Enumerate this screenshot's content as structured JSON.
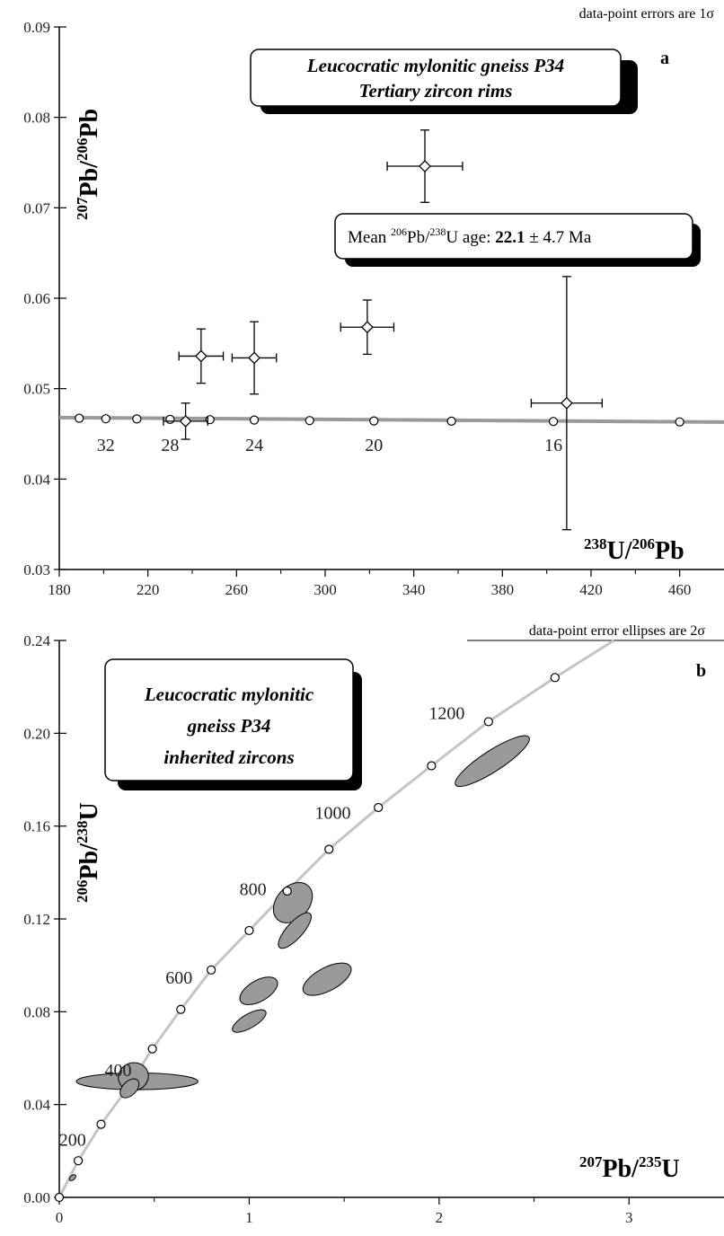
{
  "chart_data": [
    {
      "panel": "a",
      "type": "scatter",
      "note": "data-point errors  are 1σ",
      "title_box": [
        "Leucocratic mylonitic gneiss P34",
        "Tertiary zircon rims"
      ],
      "mean_box": {
        "prefix": "Mean ",
        "sup1": "206",
        "mid1": "Pb/",
        "sup2": "238",
        "mid2": "U age: ",
        "value": "22.1",
        "suffix": " ± 4.7 Ma"
      },
      "ylabel": {
        "sup1": "207",
        "t1": "Pb/",
        "sup2": "206",
        "t2": "Pb"
      },
      "xlabel": {
        "sup1": "238",
        "t1": "U/",
        "sup2": "206",
        "t2": "Pb"
      },
      "xlim": [
        180,
        480
      ],
      "ylim": [
        0.03,
        0.09
      ],
      "xticks": [
        180,
        220,
        260,
        300,
        340,
        380,
        420,
        460
      ],
      "yticks": [
        "0.03",
        "0.04",
        "0.05",
        "0.06",
        "0.07",
        "0.08",
        "0.09"
      ],
      "yticks_values": [
        0.03,
        0.04,
        0.05,
        0.06,
        0.07,
        0.08,
        0.09
      ],
      "concordia_line": [
        [
          180,
          0.0468
        ],
        [
          480,
          0.0463
        ]
      ],
      "concordia_markers": [
        [
          189,
          0.04673
        ],
        [
          201,
          0.04667
        ],
        [
          215,
          0.04665
        ],
        [
          230,
          0.0466
        ],
        [
          248,
          0.04657
        ],
        [
          268,
          0.04653
        ],
        [
          293,
          0.04647
        ],
        [
          322,
          0.04643
        ],
        [
          357,
          0.0464
        ],
        [
          403,
          0.04637
        ],
        [
          460,
          0.04632
        ]
      ],
      "age_labels": [
        {
          "text": "32",
          "x": 201,
          "y": 0.0437
        },
        {
          "text": "28",
          "x": 230,
          "y": 0.0437
        },
        {
          "text": "24",
          "x": 268,
          "y": 0.0437
        },
        {
          "text": "20",
          "x": 322,
          "y": 0.0437
        },
        {
          "text": "16",
          "x": 403,
          "y": 0.0437
        }
      ],
      "points": [
        {
          "x": 244,
          "y": 0.0536,
          "xerr": 10,
          "yerr": 0.003
        },
        {
          "x": 268,
          "y": 0.0534,
          "xerr": 10,
          "yerr": 0.004
        },
        {
          "x": 237,
          "y": 0.0464,
          "xerr": 10,
          "yerr": 0.002
        },
        {
          "x": 319,
          "y": 0.0568,
          "xerr": 12,
          "yerr": 0.003
        },
        {
          "x": 345,
          "y": 0.0746,
          "xerr": 17,
          "yerr": 0.004
        },
        {
          "x": 409,
          "y": 0.0484,
          "xerr": 16,
          "yerr": 0.014
        }
      ]
    },
    {
      "panel": "b",
      "type": "scatter",
      "note": "data-point error ellipses are 2σ",
      "title_box": [
        "Leucocratic mylonitic",
        "gneiss P34",
        "inherited  zircons"
      ],
      "ylabel": {
        "sup1": "206",
        "t1": "Pb/",
        "sup2": "238",
        "t2": "U"
      },
      "xlabel": {
        "sup1": "207",
        "t1": "Pb/",
        "sup2": "235",
        "t2": "U"
      },
      "xlim": [
        0,
        3.5
      ],
      "ylim": [
        0,
        0.24
      ],
      "xticks": [
        0,
        1,
        2,
        3
      ],
      "yticks": [
        "0.00",
        "0.04",
        "0.08",
        "0.12",
        "0.16",
        "0.20",
        "0.24"
      ],
      "yticks_values": [
        0.0,
        0.04,
        0.08,
        0.12,
        0.16,
        0.2,
        0.24
      ],
      "concordia_curve": [
        [
          0,
          0
        ],
        [
          0.1,
          0.0158
        ],
        [
          0.22,
          0.0315
        ],
        [
          0.35,
          0.046
        ],
        [
          0.49,
          0.064
        ],
        [
          0.64,
          0.081
        ],
        [
          0.8,
          0.098
        ],
        [
          1.0,
          0.115
        ],
        [
          1.2,
          0.132
        ],
        [
          1.42,
          0.15
        ],
        [
          1.68,
          0.168
        ],
        [
          1.96,
          0.186
        ],
        [
          2.26,
          0.205
        ],
        [
          2.61,
          0.224
        ],
        [
          2.92,
          0.24
        ]
      ],
      "concordia_markers": [
        [
          0,
          0
        ],
        [
          0.1,
          0.0158
        ],
        [
          0.22,
          0.0315
        ],
        [
          0.49,
          0.064
        ],
        [
          0.64,
          0.081
        ],
        [
          0.8,
          0.098
        ],
        [
          1.0,
          0.115
        ],
        [
          1.2,
          0.132
        ],
        [
          1.42,
          0.15
        ],
        [
          1.68,
          0.168
        ],
        [
          1.96,
          0.186
        ],
        [
          2.26,
          0.205
        ],
        [
          2.61,
          0.224
        ]
      ],
      "age_labels": [
        {
          "text": "200",
          "x": 0.07,
          "y": 0.0245
        },
        {
          "text": "400",
          "x": 0.31,
          "y": 0.0545
        },
        {
          "text": "600",
          "x": 0.63,
          "y": 0.0945
        },
        {
          "text": "800",
          "x": 1.02,
          "y": 0.1325
        },
        {
          "text": "1000",
          "x": 1.44,
          "y": 0.1655
        },
        {
          "text": "1200",
          "x": 2.04,
          "y": 0.2085
        }
      ],
      "ellipses": [
        {
          "x": 2.28,
          "y": 0.188,
          "rx": 0.23,
          "ry": 0.0045,
          "angle_deg": -33
        },
        {
          "x": 1.23,
          "y": 0.127,
          "rx": 0.12,
          "ry": 0.007,
          "angle_deg": -48
        },
        {
          "x": 1.24,
          "y": 0.115,
          "rx": 0.12,
          "ry": 0.0035,
          "angle_deg": -48
        },
        {
          "x": 1.41,
          "y": 0.094,
          "rx": 0.14,
          "ry": 0.005,
          "angle_deg": -28
        },
        {
          "x": 1.05,
          "y": 0.089,
          "rx": 0.11,
          "ry": 0.0045,
          "angle_deg": -30
        },
        {
          "x": 1.0,
          "y": 0.076,
          "rx": 0.1,
          "ry": 0.003,
          "angle_deg": -30
        },
        {
          "x": 0.41,
          "y": 0.05,
          "rx": 0.32,
          "ry": 0.0036,
          "angle_deg": 0
        },
        {
          "x": 0.39,
          "y": 0.052,
          "rx": 0.08,
          "ry": 0.006,
          "angle_deg": -20
        },
        {
          "x": 0.37,
          "y": 0.047,
          "rx": 0.06,
          "ry": 0.003,
          "angle_deg": -45
        },
        {
          "x": 0.07,
          "y": 0.0085,
          "rx": 0.02,
          "ry": 0.0008,
          "angle_deg": -40
        }
      ]
    }
  ]
}
